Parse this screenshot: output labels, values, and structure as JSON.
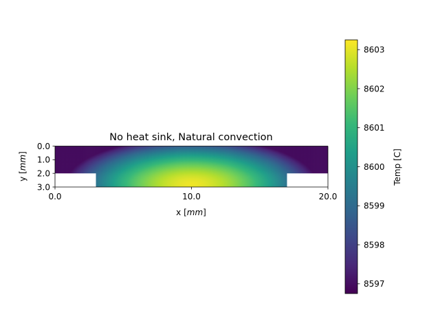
{
  "chart_data": {
    "type": "heatmap",
    "title": "No heat sink, Natural convection",
    "xlabel_prefix": "x [",
    "xlabel_unit": "mm",
    "xlabel_suffix": "]",
    "ylabel_prefix": "y [",
    "ylabel_unit": "mm",
    "ylabel_suffix": "]",
    "xlim": [
      0,
      20
    ],
    "ylim": [
      3,
      0
    ],
    "x_ticks": [
      0,
      10,
      20
    ],
    "x_tick_labels": [
      "0.0",
      "10.0",
      "20.0"
    ],
    "y_ticks": [
      0,
      1,
      2,
      3
    ],
    "y_tick_labels": [
      "0.0",
      "1.0",
      "2.0",
      "3.0"
    ],
    "domain": {
      "upper_block": {
        "x": [
          0,
          20
        ],
        "y": [
          0,
          2
        ]
      },
      "lower_block": {
        "x": [
          3,
          17
        ],
        "y": [
          2,
          3
        ]
      }
    },
    "hot_spot": {
      "x": 10,
      "y": 2.8
    },
    "colormap": "viridis",
    "colorbar": {
      "label": "Temp [C]",
      "vmin": 8596.75,
      "vmax": 8603.25,
      "ticks": [
        8597,
        8598,
        8599,
        8600,
        8601,
        8602,
        8603
      ],
      "tick_labels": [
        "8597",
        "8598",
        "8599",
        "8600",
        "8601",
        "8602",
        "8603"
      ]
    },
    "grid": false
  }
}
